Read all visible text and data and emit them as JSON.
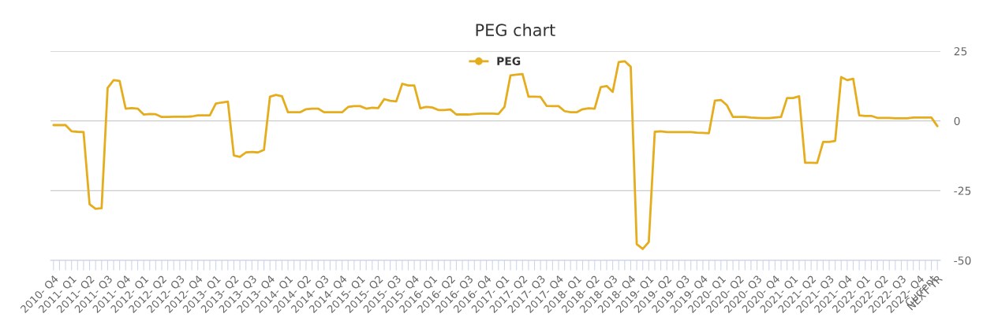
{
  "chart_data": {
    "type": "line",
    "title": "PEG chart",
    "categories": [
      "2010- Q4",
      null,
      null,
      "2011- Q1",
      null,
      null,
      "2011- Q2",
      null,
      null,
      "2011- Q3",
      null,
      null,
      "2011- Q4",
      null,
      null,
      "2012- Q1",
      null,
      null,
      "2012- Q2",
      null,
      null,
      "2012- Q3",
      null,
      null,
      "2012- Q4",
      null,
      null,
      "2013- Q1",
      null,
      null,
      "2013- Q2",
      null,
      null,
      "2013- Q3",
      null,
      null,
      "2013- Q4",
      null,
      null,
      "2014- Q1",
      null,
      null,
      "2014- Q2",
      null,
      null,
      "2014- Q3",
      null,
      null,
      "2014- Q4",
      null,
      null,
      "2015- Q1",
      null,
      null,
      "2015- Q2",
      null,
      null,
      "2015- Q3",
      null,
      null,
      "2015- Q4",
      null,
      null,
      "2016- Q1",
      null,
      null,
      "2016- Q2",
      null,
      null,
      "2016- Q3",
      null,
      null,
      "2016- Q4",
      null,
      null,
      "2017- Q1",
      null,
      null,
      "2017- Q2",
      null,
      null,
      "2017- Q3",
      null,
      null,
      "2017- Q4",
      null,
      null,
      "2018- Q1",
      null,
      null,
      "2018- Q2",
      null,
      null,
      "2018- Q3",
      null,
      null,
      "2018- Q4",
      null,
      null,
      "2019- Q1",
      null,
      null,
      "2019- Q2",
      null,
      null,
      "2019- Q3",
      null,
      null,
      "2019- Q4",
      null,
      null,
      "2020- Q1",
      null,
      null,
      "2020- Q2",
      null,
      null,
      "2020- Q3",
      null,
      null,
      "2020- Q4",
      null,
      null,
      "2021- Q1",
      null,
      null,
      "2021- Q2",
      null,
      null,
      "2021- Q3",
      null,
      null,
      "2021- Q4",
      null,
      null,
      "2022- Q1",
      null,
      null,
      "2022- Q2",
      null,
      null,
      "2022- Q3",
      null,
      null,
      "2022- Q4",
      null,
      "Current",
      "NEXT YR"
    ],
    "series": [
      {
        "name": "PEG",
        "color": "#e5ac1c",
        "values": [
          -1.5,
          -1.5,
          -1.5,
          -3.7,
          -3.9,
          -4.0,
          -29.9,
          -31.5,
          -31.3,
          11.8,
          14.6,
          14.3,
          4.4,
          4.6,
          4.4,
          2.3,
          2.5,
          2.4,
          1.4,
          1.4,
          1.5,
          1.5,
          1.5,
          1.6,
          2.0,
          2.0,
          2.0,
          6.2,
          6.6,
          6.9,
          -12.4,
          -12.9,
          -11.3,
          -11.1,
          -11.3,
          -10.4,
          8.7,
          9.3,
          8.8,
          3.1,
          3.1,
          3.1,
          4.2,
          4.4,
          4.4,
          3.1,
          3.1,
          3.1,
          3.1,
          5.0,
          5.3,
          5.3,
          4.4,
          4.7,
          4.6,
          7.8,
          7.2,
          7.0,
          13.3,
          12.7,
          12.7,
          4.5,
          5.0,
          4.8,
          3.9,
          3.9,
          4.1,
          2.3,
          2.3,
          2.3,
          2.5,
          2.6,
          2.6,
          2.6,
          2.5,
          5.0,
          16.3,
          16.6,
          16.8,
          8.7,
          8.7,
          8.6,
          5.4,
          5.3,
          5.3,
          3.5,
          3.1,
          3.1,
          4.2,
          4.5,
          4.4,
          12.1,
          12.5,
          10.4,
          21.1,
          21.4,
          19.4,
          -44.2,
          -45.9,
          -43.4,
          -3.9,
          -3.7,
          -4.0,
          -4.0,
          -4.0,
          -4.0,
          -4.0,
          -4.2,
          -4.3,
          -4.4,
          7.3,
          7.5,
          5.6,
          1.4,
          1.4,
          1.4,
          1.2,
          1.1,
          1.0,
          1.0,
          1.2,
          1.4,
          8.2,
          8.2,
          8.8,
          -15.0,
          -15.0,
          -15.1,
          -7.5,
          -7.5,
          -7.2,
          15.7,
          14.6,
          15.1,
          2.0,
          1.8,
          1.8,
          1.1,
          1.1,
          1.1,
          0.9,
          0.9,
          0.9,
          1.2,
          1.2,
          1.2,
          1.2,
          -1.9
        ]
      }
    ],
    "ylim": [
      -50,
      25
    ],
    "yticks": [
      25,
      0,
      -25,
      -50
    ],
    "grid": "y",
    "legend": "top"
  }
}
